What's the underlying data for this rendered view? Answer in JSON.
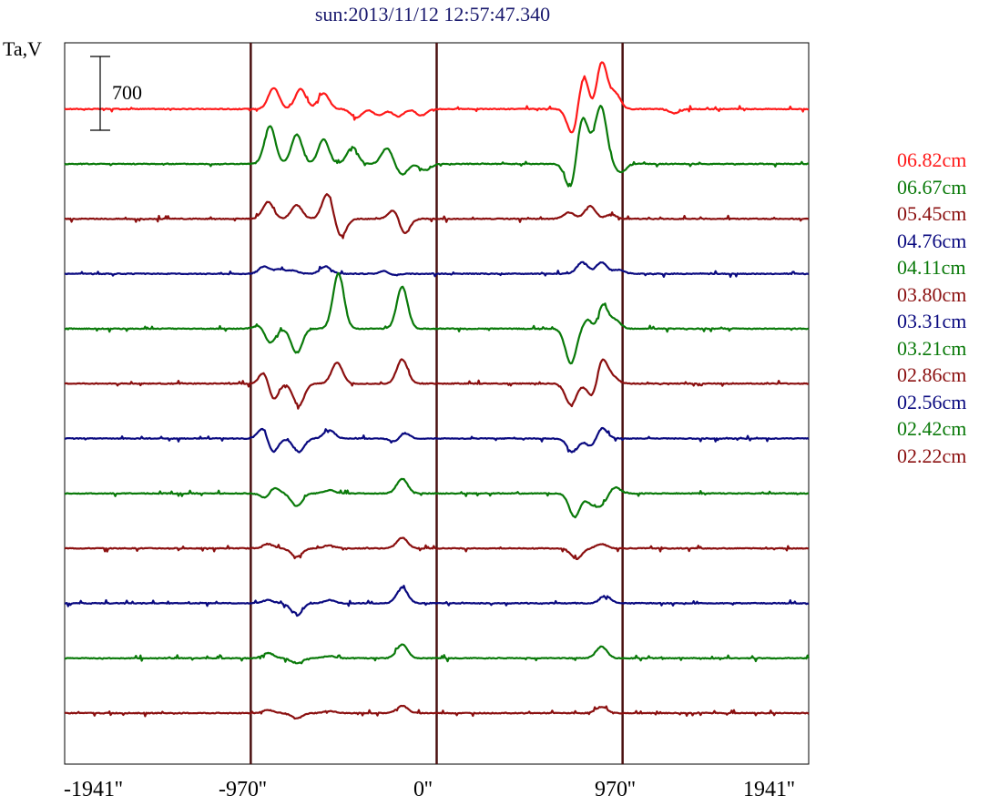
{
  "title": "sun:2013/11/12 12:57:47.340",
  "ylabel": "Ta,V",
  "chart_data": {
    "type": "line",
    "title": "sun:2013/11/12 12:57:47.340",
    "ylabel": "Ta,V",
    "xlabel": "",
    "scale_bar": {
      "value": 700,
      "label": "700"
    },
    "xlim": [
      -1941,
      1941
    ],
    "xticks": [
      -1941,
      -970,
      0,
      970,
      1941
    ],
    "xtick_labels": [
      "-1941''",
      "-970''",
      "0''",
      "970''",
      "1941''"
    ],
    "vlines": [
      -970,
      0,
      970
    ],
    "grid": false,
    "legend_position": "right",
    "series": [
      {
        "name": "06.82cm",
        "color": "#ff1a1a",
        "offset": 11,
        "peaks": [
          [
            -850,
            200
          ],
          [
            -710,
            190
          ],
          [
            -590,
            150
          ],
          [
            -420,
            -80
          ],
          [
            -300,
            -60
          ],
          [
            -200,
            -70
          ],
          [
            -80,
            -60
          ],
          [
            710,
            -250
          ],
          [
            770,
            360
          ],
          [
            810,
            -120
          ],
          [
            860,
            460
          ],
          [
            930,
            150
          ],
          [
            1240,
            -40
          ]
        ]
      },
      {
        "name": "06.67cm",
        "color": "#0a7a0a",
        "offset": 10,
        "peaks": [
          [
            -870,
            360
          ],
          [
            -730,
            280
          ],
          [
            -590,
            230
          ],
          [
            -440,
            160
          ],
          [
            -260,
            150
          ],
          [
            -180,
            -100
          ],
          [
            -60,
            -60
          ],
          [
            700,
            -250
          ],
          [
            760,
            440
          ],
          [
            820,
            120
          ],
          [
            860,
            500
          ],
          [
            960,
            -80
          ]
        ]
      },
      {
        "name": "05.45cm",
        "color": "#8b1010",
        "offset": 9,
        "peaks": [
          [
            -880,
            160
          ],
          [
            -730,
            130
          ],
          [
            -570,
            240
          ],
          [
            -500,
            -170
          ],
          [
            -220,
            100
          ],
          [
            -170,
            -150
          ],
          [
            690,
            60
          ],
          [
            800,
            120
          ],
          [
            910,
            40
          ]
        ]
      },
      {
        "name": "04.76cm",
        "color": "#0a0a80",
        "offset": 8,
        "peaks": [
          [
            -900,
            70
          ],
          [
            -820,
            40
          ],
          [
            -750,
            30
          ],
          [
            -580,
            70
          ],
          [
            -260,
            50
          ],
          [
            -240,
            -40
          ],
          [
            760,
            110
          ],
          [
            860,
            110
          ],
          [
            950,
            40
          ]
        ]
      },
      {
        "name": "04.11cm",
        "color": "#0a7a0a",
        "offset": 7,
        "peaks": [
          [
            -920,
            40
          ],
          [
            -870,
            -140
          ],
          [
            -730,
            -230
          ],
          [
            -520,
            130
          ],
          [
            -510,
            400
          ],
          [
            -180,
            400
          ],
          [
            700,
            -330
          ],
          [
            800,
            150
          ],
          [
            830,
            -190
          ],
          [
            860,
            300
          ],
          [
            930,
            80
          ]
        ]
      },
      {
        "name": "03.80cm",
        "color": "#8b1010",
        "offset": 6,
        "peaks": [
          [
            -890,
            180
          ],
          [
            -860,
            -220
          ],
          [
            -720,
            -210
          ],
          [
            -520,
            200
          ],
          [
            -180,
            230
          ],
          [
            700,
            -200
          ],
          [
            820,
            -170
          ],
          [
            860,
            270
          ],
          [
            920,
            60
          ]
        ]
      },
      {
        "name": "03.31cm",
        "color": "#0a0a80",
        "offset": 5,
        "peaks": [
          [
            -900,
            130
          ],
          [
            -860,
            -160
          ],
          [
            -720,
            -130
          ],
          [
            -560,
            80
          ],
          [
            -200,
            -80
          ],
          [
            -180,
            100
          ],
          [
            710,
            -130
          ],
          [
            810,
            -80
          ],
          [
            860,
            110
          ]
        ]
      },
      {
        "name": "03.21cm",
        "color": "#0a7a0a",
        "offset": 4,
        "peaks": [
          [
            -880,
            -100
          ],
          [
            -860,
            110
          ],
          [
            -730,
            -120
          ],
          [
            -560,
            30
          ],
          [
            -180,
            140
          ],
          [
            720,
            -220
          ],
          [
            810,
            -90
          ],
          [
            860,
            -100
          ],
          [
            930,
            60
          ]
        ]
      },
      {
        "name": "02.86cm",
        "color": "#8b1010",
        "offset": 3,
        "peaks": [
          [
            -880,
            40
          ],
          [
            -730,
            -80
          ],
          [
            -560,
            30
          ],
          [
            -180,
            100
          ],
          [
            730,
            -100
          ],
          [
            860,
            40
          ]
        ]
      },
      {
        "name": "02.56cm",
        "color": "#0a0a80",
        "offset": 2,
        "peaks": [
          [
            -880,
            30
          ],
          [
            -730,
            -120
          ],
          [
            -560,
            30
          ],
          [
            -180,
            150
          ],
          [
            880,
            70
          ]
        ]
      },
      {
        "name": "02.42cm",
        "color": "#0a7a0a",
        "offset": 1,
        "peaks": [
          [
            -880,
            50
          ],
          [
            -730,
            -50
          ],
          [
            -560,
            20
          ],
          [
            -180,
            130
          ],
          [
            860,
            110
          ]
        ]
      },
      {
        "name": "02.22cm",
        "color": "#8b1010",
        "offset": 0,
        "peaks": [
          [
            -880,
            30
          ],
          [
            -730,
            -50
          ],
          [
            -560,
            20
          ],
          [
            -180,
            70
          ],
          [
            860,
            60
          ]
        ]
      }
    ]
  }
}
